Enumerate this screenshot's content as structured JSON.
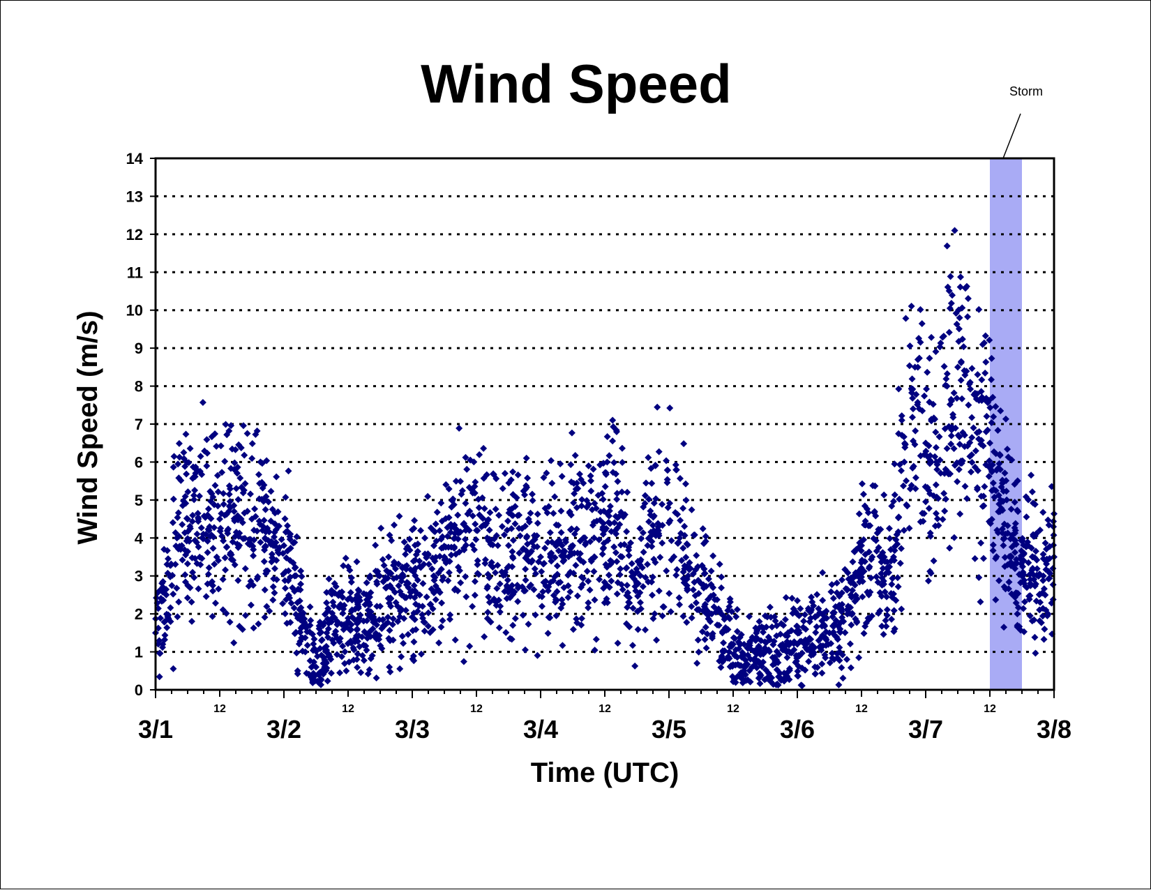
{
  "chart_data": {
    "type": "scatter",
    "title": "Wind Speed",
    "xlabel": "Time (UTC)",
    "ylabel": "Wind Speed (m/s)",
    "ylim": [
      0,
      14
    ],
    "yticks": [
      "0",
      "1",
      "2",
      "3",
      "4",
      "5",
      "6",
      "7",
      "8",
      "9",
      "10",
      "11",
      "12",
      "13",
      "14"
    ],
    "xlim": [
      "3/1 00:00",
      "3/8 00:00"
    ],
    "x_major_ticks": [
      "3/1",
      "3/2",
      "3/3",
      "3/4",
      "3/5",
      "3/6",
      "3/7",
      "3/8"
    ],
    "x_minor_label": "12",
    "grid": "horizontal dotted",
    "marker": "diamond",
    "series_color": "#000080",
    "highlight": {
      "label": "Storm",
      "color": "#a9abf5",
      "x_start": "3/7 12:00",
      "x_end": "3/7 18:00"
    },
    "series": [
      {
        "values_note_x_unit": "hours since 3/1 00:00",
        "x": [
          0,
          2,
          4,
          6,
          8,
          10,
          12,
          14,
          16,
          18,
          20,
          22,
          24,
          26,
          28,
          30,
          32,
          34,
          36,
          38,
          40,
          42,
          44,
          46,
          48,
          50,
          52,
          54,
          56,
          58,
          60,
          62,
          64,
          66,
          68,
          70,
          72,
          74,
          76,
          78,
          80,
          82,
          84,
          86,
          88,
          90,
          92,
          94,
          96,
          98,
          100,
          102,
          104,
          106,
          108,
          110,
          112,
          114,
          116,
          118,
          120,
          122,
          124,
          126,
          128,
          130,
          132,
          134,
          136,
          138,
          140,
          142,
          144,
          146,
          148,
          150,
          152,
          154,
          156,
          158,
          160,
          162,
          164,
          166,
          168
        ],
        "y": [
          1.5,
          2.5,
          4.0,
          4.5,
          4.5,
          4.2,
          4.5,
          4.8,
          4.5,
          4.5,
          4.2,
          3.8,
          3.8,
          3.0,
          1.0,
          0.6,
          1.5,
          1.8,
          1.8,
          1.8,
          2.0,
          2.2,
          2.4,
          2.5,
          2.6,
          2.8,
          3.0,
          3.5,
          4.0,
          4.2,
          4.2,
          4.0,
          3.8,
          3.8,
          3.6,
          3.6,
          3.5,
          3.6,
          3.8,
          3.8,
          4.0,
          4.0,
          4.2,
          4.2,
          3.2,
          2.8,
          3.8,
          4.2,
          4.4,
          4.0,
          3.2,
          2.8,
          2.0,
          1.5,
          1.2,
          0.5,
          1.0,
          1.0,
          0.8,
          1.0,
          1.2,
          1.3,
          1.3,
          1.5,
          1.6,
          2.5,
          3.8,
          3.5,
          3.2,
          3.5,
          6.0,
          8.5,
          6.5,
          6.0,
          8.0,
          8.5,
          7.5,
          6.8,
          6.5,
          5.0,
          3.5,
          3.0,
          3.2,
          3.0,
          3.5
        ]
      }
    ]
  }
}
